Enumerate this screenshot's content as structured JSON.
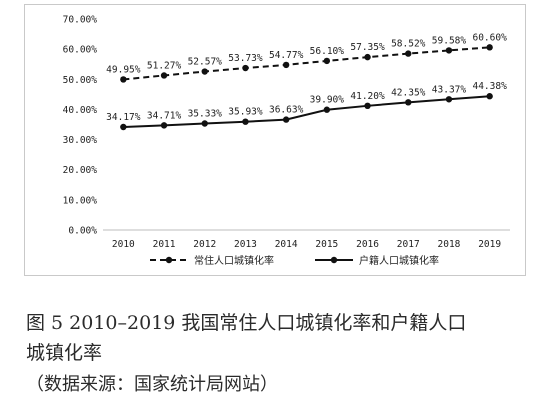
{
  "chart_data": {
    "type": "line",
    "categories": [
      "2010",
      "2011",
      "2012",
      "2013",
      "2014",
      "2015",
      "2016",
      "2017",
      "2018",
      "2019"
    ],
    "y_tick_labels": [
      "0.00%",
      "10.00%",
      "20.00%",
      "30.00%",
      "40.00%",
      "50.00%",
      "60.00%",
      "70.00%"
    ],
    "ylim": [
      0,
      70
    ],
    "grid": false,
    "legend_position": "bottom",
    "series": [
      {
        "name": "常住人口城镇化率",
        "style": "dashed",
        "color": "#111111",
        "values": [
          49.95,
          51.27,
          52.57,
          53.73,
          54.77,
          56.1,
          57.35,
          58.52,
          59.58,
          60.6
        ],
        "labels": [
          "49.95%",
          "51.27%",
          "52.57%",
          "53.73%",
          "54.77%",
          "56.10%",
          "57.35%",
          "58.52%",
          "59.58%",
          "60.60%"
        ]
      },
      {
        "name": "户籍人口城镇化率",
        "style": "solid",
        "color": "#111111",
        "values": [
          34.17,
          34.71,
          35.33,
          35.93,
          36.63,
          39.9,
          41.2,
          42.35,
          43.37,
          44.38
        ],
        "labels": [
          "34.17%",
          "34.71%",
          "35.33%",
          "35.93%",
          "36.63%",
          "39.90%",
          "41.20%",
          "42.35%",
          "43.37%",
          "44.38%"
        ]
      }
    ]
  },
  "caption": {
    "line1": "图 5  2010–2019 我国常住人口城镇化率和户籍人口",
    "line2": "城镇化率",
    "source": "（数据来源：国家统计局网站）"
  }
}
